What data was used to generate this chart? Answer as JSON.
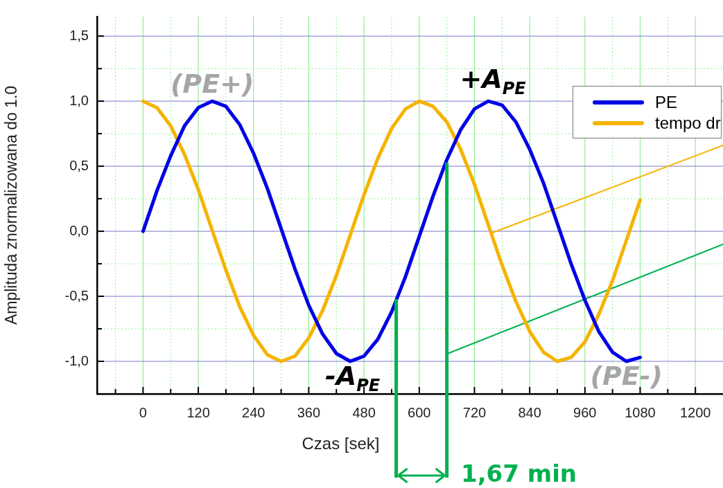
{
  "chart_data": {
    "type": "line",
    "xlabel": "Czas [sek]",
    "ylabel": "Amplituda znormalizowana do 1.0",
    "x": [
      0,
      30,
      60,
      90,
      120,
      150,
      180,
      210,
      240,
      270,
      300,
      330,
      360,
      390,
      420,
      450,
      480,
      510,
      540,
      570,
      600,
      630,
      660,
      690,
      720,
      750,
      780,
      810,
      840,
      870,
      900,
      930,
      960,
      990,
      1020,
      1050,
      1080
    ],
    "series": [
      {
        "name": "PE",
        "color": "#0000e6",
        "values": [
          0,
          0.31,
          0.58,
          0.81,
          0.95,
          1.0,
          0.96,
          0.82,
          0.6,
          0.33,
          0.02,
          -0.29,
          -0.57,
          -0.79,
          -0.94,
          -1.0,
          -0.96,
          -0.83,
          -0.62,
          -0.35,
          -0.04,
          0.27,
          0.55,
          0.78,
          0.94,
          1.0,
          0.97,
          0.84,
          0.63,
          0.37,
          0.06,
          -0.25,
          -0.53,
          -0.77,
          -0.93,
          -1.0,
          -0.97
        ]
      },
      {
        "name": "tempo dr",
        "color": "#f5b400",
        "values": [
          1.0,
          0.95,
          0.81,
          0.59,
          0.32,
          0.01,
          -0.3,
          -0.58,
          -0.8,
          -0.95,
          -1.0,
          -0.96,
          -0.82,
          -0.61,
          -0.34,
          -0.03,
          0.28,
          0.56,
          0.79,
          0.94,
          1.0,
          0.96,
          0.84,
          0.63,
          0.36,
          0.05,
          -0.26,
          -0.54,
          -0.77,
          -0.93,
          -1.0,
          -0.97,
          -0.85,
          -0.64,
          -0.38,
          -0.07,
          0.24
        ]
      },
      {
        "color": "#f5b400",
        "x": [
          760,
          1260
        ],
        "values": [
          -0.01,
          0.66
        ]
      },
      {
        "color": "#00b050",
        "x": [
          662,
          1260
        ],
        "values": [
          -0.94,
          -0.1
        ]
      }
    ],
    "ref_lines": [
      {
        "axis": "x",
        "value": 550,
        "color": "#00b050"
      },
      {
        "axis": "x",
        "value": 660,
        "color": "#00b050"
      }
    ],
    "xlim": [
      -100,
      1260
    ],
    "ylim": [
      -1.25,
      1.65
    ],
    "xticks": [
      {
        "value": -60,
        "label": null
      },
      0,
      {
        "value": 60,
        "label": null
      },
      120,
      {
        "value": 180,
        "label": null
      },
      240,
      {
        "value": 300,
        "label": null
      },
      360,
      {
        "value": 420,
        "label": null
      },
      480,
      {
        "value": 540,
        "label": null
      },
      600,
      {
        "value": 660,
        "label": null
      },
      720,
      {
        "value": 780,
        "label": null
      },
      840,
      {
        "value": 900,
        "label": null
      },
      960,
      {
        "value": 1020,
        "label": null
      },
      1080,
      {
        "value": 1140,
        "label": null
      },
      1200
    ],
    "yticks": [
      {
        "value": -1.0,
        "label": "-1,0"
      },
      {
        "value": -0.75,
        "label": null
      },
      {
        "value": -0.5,
        "label": "-0,5"
      },
      {
        "value": -0.25,
        "label": null
      },
      {
        "value": 0,
        "label": "0,0"
      },
      {
        "value": 0.25,
        "label": null
      },
      {
        "value": 0.5,
        "label": "0,5"
      },
      {
        "value": 0.75,
        "label": null
      },
      {
        "value": 1.0,
        "label": "1,0"
      },
      {
        "value": 1.25,
        "label": null
      },
      {
        "value": 1.5,
        "label": "1,5"
      }
    ],
    "grid": true,
    "legend": "top right",
    "marker": "none",
    "line_style": "solid",
    "annotations": [
      {
        "text": "(PE+)",
        "x": 150,
        "y": 1.0
      },
      {
        "text": "+A$_{PE}$",
        "x": 760,
        "y": 1.0
      },
      {
        "text": "-A$_{PE}$",
        "x": 455,
        "y": -1.0
      },
      {
        "text": "(PE-)",
        "x": 1050,
        "y": -1.0
      },
      "1,67 min"
    ]
  }
}
